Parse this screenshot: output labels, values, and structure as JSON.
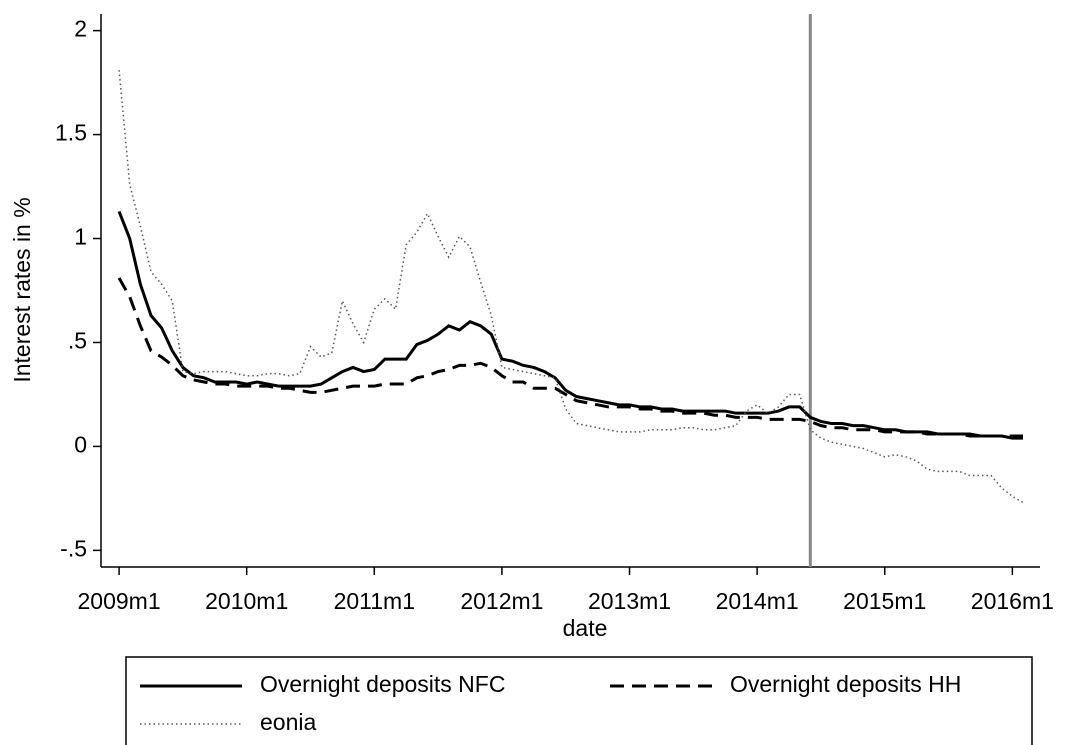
{
  "chart_data": {
    "type": "line",
    "x_label": "date",
    "y_label": "Interest rates in %",
    "x": [
      588,
      589,
      590,
      591,
      592,
      593,
      594,
      595,
      596,
      597,
      598,
      599,
      600,
      601,
      602,
      603,
      604,
      605,
      606,
      607,
      608,
      609,
      610,
      611,
      612,
      613,
      614,
      615,
      616,
      617,
      618,
      619,
      620,
      621,
      622,
      623,
      624,
      625,
      626,
      627,
      628,
      629,
      630,
      631,
      632,
      633,
      634,
      635,
      636,
      637,
      638,
      639,
      640,
      641,
      642,
      643,
      644,
      645,
      646,
      647,
      648,
      649,
      650,
      651,
      652,
      653,
      654,
      655,
      656,
      657,
      658,
      659,
      660,
      661,
      662,
      663,
      664,
      665,
      666,
      667,
      668,
      669,
      670,
      671,
      672,
      673
    ],
    "series": [
      {
        "name": "Overnight deposits NFC",
        "color": "#000000",
        "style": "solid",
        "values": [
          1.13,
          1.0,
          0.78,
          0.63,
          0.57,
          0.46,
          0.38,
          0.34,
          0.33,
          0.31,
          0.31,
          0.31,
          0.3,
          0.31,
          0.3,
          0.29,
          0.29,
          0.29,
          0.29,
          0.3,
          0.33,
          0.36,
          0.38,
          0.36,
          0.37,
          0.42,
          0.42,
          0.42,
          0.49,
          0.51,
          0.54,
          0.58,
          0.56,
          0.6,
          0.58,
          0.54,
          0.42,
          0.41,
          0.39,
          0.38,
          0.36,
          0.33,
          0.27,
          0.24,
          0.23,
          0.22,
          0.21,
          0.2,
          0.2,
          0.19,
          0.19,
          0.18,
          0.18,
          0.17,
          0.17,
          0.17,
          0.17,
          0.17,
          0.16,
          0.16,
          0.16,
          0.16,
          0.17,
          0.19,
          0.19,
          0.14,
          0.12,
          0.11,
          0.11,
          0.1,
          0.1,
          0.09,
          0.08,
          0.08,
          0.07,
          0.07,
          0.07,
          0.06,
          0.06,
          0.06,
          0.06,
          0.05,
          0.05,
          0.05,
          0.04,
          0.04
        ]
      },
      {
        "name": "Overnight deposits HH",
        "color": "#000000",
        "style": "dash",
        "values": [
          0.81,
          0.72,
          0.58,
          0.46,
          0.43,
          0.39,
          0.34,
          0.32,
          0.31,
          0.3,
          0.3,
          0.29,
          0.29,
          0.29,
          0.29,
          0.28,
          0.28,
          0.27,
          0.26,
          0.26,
          0.27,
          0.28,
          0.29,
          0.29,
          0.29,
          0.3,
          0.3,
          0.3,
          0.33,
          0.34,
          0.36,
          0.37,
          0.39,
          0.39,
          0.4,
          0.38,
          0.34,
          0.31,
          0.31,
          0.28,
          0.28,
          0.28,
          0.25,
          0.22,
          0.21,
          0.2,
          0.19,
          0.19,
          0.19,
          0.18,
          0.18,
          0.17,
          0.17,
          0.16,
          0.16,
          0.16,
          0.15,
          0.15,
          0.14,
          0.14,
          0.14,
          0.13,
          0.13,
          0.13,
          0.13,
          0.12,
          0.1,
          0.09,
          0.09,
          0.08,
          0.08,
          0.08,
          0.07,
          0.07,
          0.07,
          0.07,
          0.06,
          0.06,
          0.06,
          0.06,
          0.05,
          0.05,
          0.05,
          0.05,
          0.05,
          0.05
        ]
      },
      {
        "name": "eonia",
        "color": "#555555",
        "style": "dot",
        "values": [
          1.81,
          1.26,
          1.06,
          0.84,
          0.78,
          0.7,
          0.36,
          0.35,
          0.36,
          0.36,
          0.36,
          0.35,
          0.34,
          0.34,
          0.35,
          0.35,
          0.34,
          0.35,
          0.48,
          0.43,
          0.45,
          0.7,
          0.59,
          0.5,
          0.66,
          0.71,
          0.66,
          0.97,
          1.03,
          1.12,
          1.01,
          0.91,
          1.01,
          0.96,
          0.79,
          0.63,
          0.38,
          0.37,
          0.36,
          0.35,
          0.34,
          0.33,
          0.18,
          0.11,
          0.1,
          0.09,
          0.08,
          0.07,
          0.07,
          0.07,
          0.08,
          0.08,
          0.08,
          0.09,
          0.09,
          0.08,
          0.08,
          0.09,
          0.1,
          0.17,
          0.2,
          0.16,
          0.19,
          0.25,
          0.25,
          0.08,
          0.04,
          0.02,
          0.01,
          0.0,
          -0.01,
          -0.03,
          -0.05,
          -0.04,
          -0.05,
          -0.07,
          -0.11,
          -0.12,
          -0.12,
          -0.12,
          -0.14,
          -0.14,
          -0.14,
          -0.2,
          -0.24,
          -0.27
        ]
      }
    ],
    "xlim": [
      586.3,
      674.6
    ],
    "ylim": [
      -0.58,
      2.08
    ],
    "xticks": [
      {
        "value": 588,
        "label": "2009m1"
      },
      {
        "value": 600,
        "label": "2010m1"
      },
      {
        "value": 612,
        "label": "2011m1"
      },
      {
        "value": 624,
        "label": "2012m1"
      },
      {
        "value": 636,
        "label": "2013m1"
      },
      {
        "value": 648,
        "label": "2014m1"
      },
      {
        "value": 660,
        "label": "2015m1"
      },
      {
        "value": 672,
        "label": "2016m1"
      }
    ],
    "yticks": [
      {
        "value": -0.5,
        "label": "-.5"
      },
      0,
      {
        "value": 0.5,
        "label": ".5"
      },
      1,
      1.5,
      2
    ],
    "vlines": [
      653
    ],
    "vline_color": "#888888",
    "grid": false
  }
}
